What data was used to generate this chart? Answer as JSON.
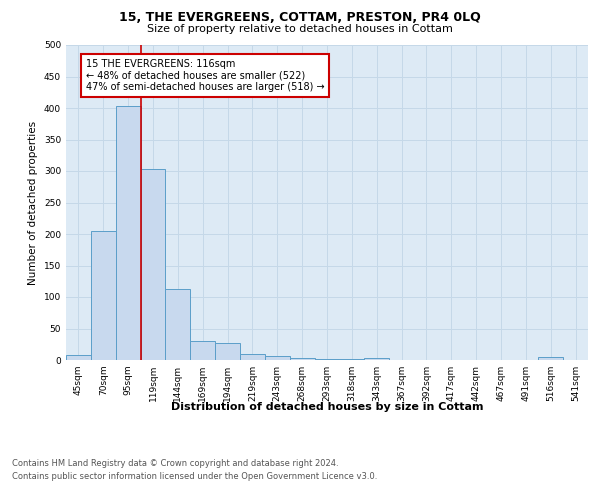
{
  "title": "15, THE EVERGREENS, COTTAM, PRESTON, PR4 0LQ",
  "subtitle": "Size of property relative to detached houses in Cottam",
  "xlabel": "Distribution of detached houses by size in Cottam",
  "ylabel": "Number of detached properties",
  "categories": [
    "45sqm",
    "70sqm",
    "95sqm",
    "119sqm",
    "144sqm",
    "169sqm",
    "194sqm",
    "219sqm",
    "243sqm",
    "268sqm",
    "293sqm",
    "318sqm",
    "343sqm",
    "367sqm",
    "392sqm",
    "417sqm",
    "442sqm",
    "467sqm",
    "491sqm",
    "516sqm",
    "541sqm"
  ],
  "values": [
    8,
    204,
    403,
    303,
    112,
    30,
    27,
    9,
    7,
    3,
    2,
    2,
    3,
    0,
    0,
    0,
    0,
    0,
    0,
    4,
    0
  ],
  "bar_color": "#c8d9ee",
  "bar_edge_color": "#5b9ec9",
  "vline_x": 2.5,
  "vline_color": "#cc0000",
  "annotation_text": "15 THE EVERGREENS: 116sqm\n← 48% of detached houses are smaller (522)\n47% of semi-detached houses are larger (518) →",
  "annotation_box_color": "white",
  "annotation_box_edge_color": "#cc0000",
  "ylim": [
    0,
    500
  ],
  "yticks": [
    0,
    50,
    100,
    150,
    200,
    250,
    300,
    350,
    400,
    450,
    500
  ],
  "grid_color": "#c5d8e8",
  "background_color": "#ddeaf5",
  "footer_line1": "Contains HM Land Registry data © Crown copyright and database right 2024.",
  "footer_line2": "Contains public sector information licensed under the Open Government Licence v3.0.",
  "title_fontsize": 9,
  "subtitle_fontsize": 8,
  "axis_label_fontsize": 8,
  "ylabel_fontsize": 7.5,
  "tick_fontsize": 6.5,
  "annotation_fontsize": 7,
  "footer_fontsize": 6
}
